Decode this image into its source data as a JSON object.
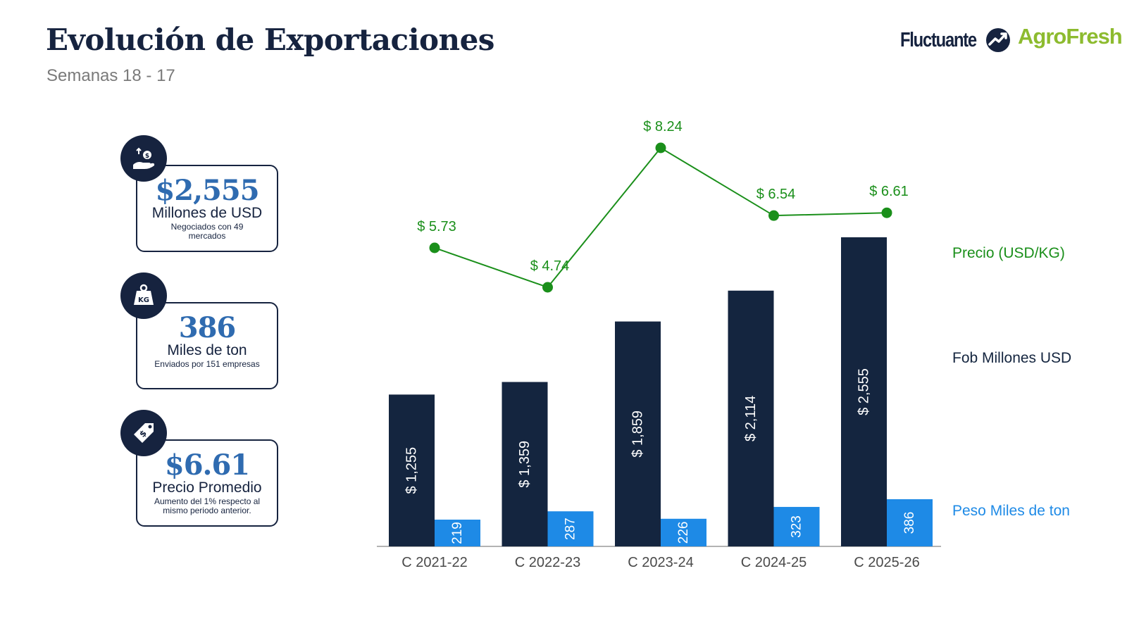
{
  "header": {
    "title": "Evolución de Exportaciones",
    "subtitle": "Semanas 18 - 17",
    "logo_primary": "Fluctuante",
    "logo_secondary": "AgroFresh"
  },
  "cards": [
    {
      "icon": "money-hand-icon",
      "value": "$2,555",
      "unit": "Millones de USD",
      "note": "Negociados con 49 mercados"
    },
    {
      "icon": "kg-weight-icon",
      "value": "386",
      "unit": "Miles de ton",
      "note": "Enviados por 151 empresas"
    },
    {
      "icon": "price-tag-icon",
      "value": "$6.61",
      "unit": "Precio Promedio",
      "note": "Aumento del 1% respecto al mismo periodo anterior."
    }
  ],
  "legend": {
    "price": "Precio (USD/KG)",
    "fob": "Fob Millones USD",
    "weight": "Peso Miles de ton"
  },
  "colors": {
    "navy": "#14253f",
    "blue": "#1e8ae6",
    "green": "#1a8f1a",
    "accent_blue": "#2f6bb0",
    "agrofresh_green": "#8dbb2f"
  },
  "chart_data": {
    "type": "bar",
    "categories": [
      "C 2021-22",
      "C 2022-23",
      "C 2023-24",
      "C 2024-25",
      "C 2025-26"
    ],
    "series": [
      {
        "name": "Fob Millones USD",
        "type": "bar",
        "values": [
          1255,
          1359,
          1859,
          2114,
          2555
        ],
        "labels": [
          "$ 1,255",
          "$ 1,359",
          "$ 1,859",
          "$ 2,114",
          "$ 2,555"
        ]
      },
      {
        "name": "Peso Miles de ton",
        "type": "bar",
        "values": [
          219,
          287,
          226,
          323,
          386
        ],
        "labels": [
          "219",
          "287",
          "226",
          "323",
          "386"
        ]
      },
      {
        "name": "Precio (USD/KG)",
        "type": "line",
        "values": [
          5.73,
          4.74,
          8.24,
          6.54,
          6.61
        ],
        "labels": [
          "$ 5.73",
          "$ 4.74",
          "$ 8.24",
          "$ 6.54",
          "$ 6.61"
        ]
      }
    ],
    "ylim_bars": [
      0,
      2555
    ],
    "ylim_price": [
      4.74,
      8.24
    ],
    "grid": false
  }
}
